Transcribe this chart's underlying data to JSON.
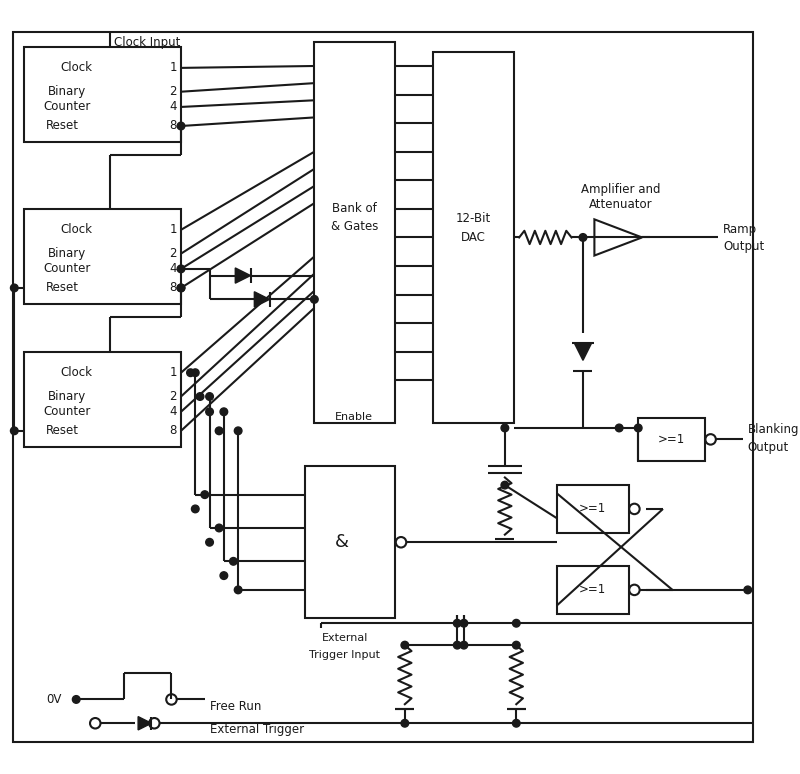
{
  "bg_color": "#ffffff",
  "line_color": "#1a1a1a",
  "lw": 1.5,
  "fig_w": 8.0,
  "fig_h": 7.74,
  "xlim": [
    0,
    800
  ],
  "ylim": [
    0,
    774
  ]
}
